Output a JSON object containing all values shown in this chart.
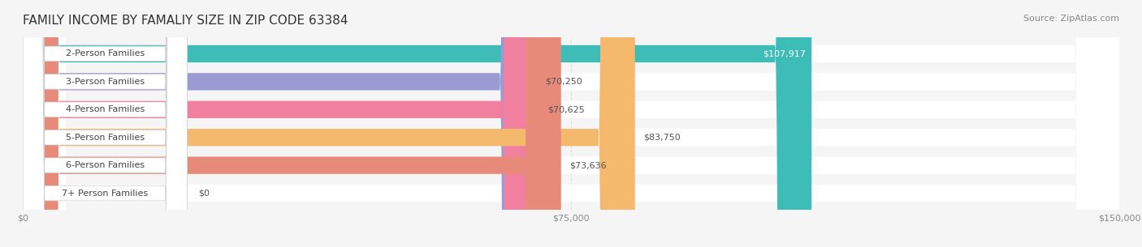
{
  "title": "FAMILY INCOME BY FAMALIY SIZE IN ZIP CODE 63384",
  "source": "Source: ZipAtlas.com",
  "categories": [
    "2-Person Families",
    "3-Person Families",
    "4-Person Families",
    "5-Person Families",
    "6-Person Families",
    "7+ Person Families"
  ],
  "values": [
    107917,
    70250,
    70625,
    83750,
    73636,
    0
  ],
  "bar_colors": [
    "#3dbcb8",
    "#9b9bd4",
    "#f07fa0",
    "#f5b96e",
    "#e88a7a",
    "#a8c8e8"
  ],
  "bar_colors_light": [
    "#a8e4e2",
    "#c8c8e8",
    "#f8b8cc",
    "#f8d8a8",
    "#f0b8b0",
    "#d0e4f4"
  ],
  "xlim": [
    0,
    150000
  ],
  "xtick_values": [
    0,
    75000,
    150000
  ],
  "xtick_labels": [
    "$0",
    "$75,000",
    "$150,000"
  ],
  "value_labels": [
    "$107,917",
    "$70,250",
    "$70,625",
    "$83,750",
    "$73,636",
    "$0"
  ],
  "background_color": "#f5f5f5",
  "bar_background": "#e8e8e8",
  "title_fontsize": 11,
  "source_fontsize": 8,
  "label_fontsize": 8,
  "value_fontsize": 8
}
